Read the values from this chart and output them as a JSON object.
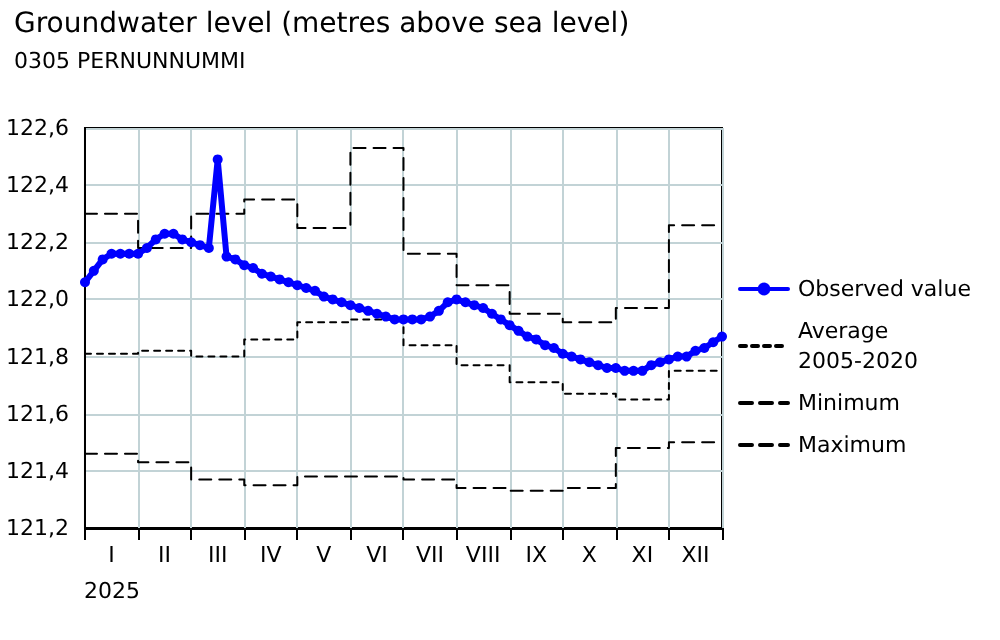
{
  "chart_data": {
    "type": "line",
    "title": "Groundwater level (metres above sea level)",
    "subtitle": "0305 PERNUNNUMMI",
    "xlabel": "2025",
    "categories": [
      null,
      null,
      null,
      "I",
      null,
      null,
      null,
      null,
      null,
      "II",
      null,
      null,
      null,
      null,
      null,
      "III",
      null,
      null,
      null,
      null,
      null,
      "IV",
      null,
      null,
      null,
      null,
      null,
      "V",
      null,
      null,
      null,
      null,
      null,
      "VI",
      null,
      null,
      null,
      null,
      null,
      "VII",
      null,
      null,
      null,
      null,
      null,
      "VIII",
      null,
      null,
      null,
      null,
      null,
      "IX",
      null,
      null,
      null,
      null,
      null,
      "X",
      null,
      null,
      null,
      null,
      null,
      "XI",
      null,
      null,
      null,
      null,
      null,
      "XII",
      null,
      null,
      null
    ],
    "ylim": [
      121.2,
      122.6
    ],
    "yticks": [
      {
        "value": 121.2,
        "label": "121,2"
      },
      {
        "value": 121.4,
        "label": "121,4"
      },
      {
        "value": 121.6,
        "label": "121,6"
      },
      {
        "value": 121.8,
        "label": "121,8"
      },
      {
        "value": 122.0,
        "label": "122,0"
      },
      {
        "value": 122.2,
        "label": "122,2"
      },
      {
        "value": 122.4,
        "label": "122,4"
      },
      {
        "value": 122.6,
        "label": "122,6"
      }
    ],
    "grid": true,
    "legend": "right",
    "series": [
      {
        "name": "Observed value",
        "color": "#0000ff",
        "marker": "circle",
        "line_style": "solid",
        "values": [
          122.06,
          122.1,
          122.14,
          122.16,
          122.16,
          122.16,
          122.16,
          122.18,
          122.21,
          122.23,
          122.23,
          122.21,
          122.2,
          122.19,
          122.18,
          122.49,
          122.15,
          122.14,
          122.12,
          122.11,
          122.09,
          122.08,
          122.07,
          122.06,
          122.05,
          122.04,
          122.03,
          122.01,
          122.0,
          121.99,
          121.98,
          121.97,
          121.96,
          121.95,
          121.94,
          121.93,
          121.93,
          121.93,
          121.93,
          121.94,
          121.96,
          121.99,
          122.0,
          121.99,
          121.98,
          121.97,
          121.95,
          121.93,
          121.91,
          121.89,
          121.87,
          121.86,
          121.84,
          121.83,
          121.81,
          121.8,
          121.79,
          121.78,
          121.77,
          121.76,
          121.76,
          121.75,
          121.75,
          121.75,
          121.77,
          121.78,
          121.79,
          121.8,
          121.8,
          121.82,
          121.83,
          121.85,
          121.87
        ]
      },
      {
        "name": "Average 2005-2020",
        "type": "step",
        "color": "#000000",
        "marker": "none",
        "line_style": "dotted",
        "values": [
          121.81,
          121.81,
          121.81,
          121.81,
          121.81,
          121.81,
          121.82,
          121.82,
          121.82,
          121.82,
          121.82,
          121.82,
          121.8,
          121.8,
          121.8,
          121.8,
          121.8,
          121.8,
          121.86,
          121.86,
          121.86,
          121.86,
          121.86,
          121.86,
          121.92,
          121.92,
          121.92,
          121.92,
          121.92,
          121.92,
          121.93,
          121.93,
          121.93,
          121.93,
          121.93,
          121.93,
          121.84,
          121.84,
          121.84,
          121.84,
          121.84,
          121.84,
          121.77,
          121.77,
          121.77,
          121.77,
          121.77,
          121.77,
          121.71,
          121.71,
          121.71,
          121.71,
          121.71,
          121.71,
          121.67,
          121.67,
          121.67,
          121.67,
          121.67,
          121.67,
          121.65,
          121.65,
          121.65,
          121.65,
          121.65,
          121.65,
          121.75,
          121.75,
          121.75,
          121.75,
          121.75,
          121.75,
          121.75
        ]
      },
      {
        "name": "Minimum",
        "type": "step",
        "color": "#000000",
        "marker": "none",
        "line_style": "dashed",
        "values": [
          121.46,
          121.46,
          121.46,
          121.46,
          121.46,
          121.46,
          121.43,
          121.43,
          121.43,
          121.43,
          121.43,
          121.43,
          121.37,
          121.37,
          121.37,
          121.37,
          121.37,
          121.37,
          121.35,
          121.35,
          121.35,
          121.35,
          121.35,
          121.35,
          121.38,
          121.38,
          121.38,
          121.38,
          121.38,
          121.38,
          121.38,
          121.38,
          121.38,
          121.38,
          121.38,
          121.38,
          121.37,
          121.37,
          121.37,
          121.37,
          121.37,
          121.37,
          121.34,
          121.34,
          121.34,
          121.34,
          121.34,
          121.34,
          121.33,
          121.33,
          121.33,
          121.33,
          121.33,
          121.33,
          121.34,
          121.34,
          121.34,
          121.34,
          121.34,
          121.34,
          121.48,
          121.48,
          121.48,
          121.48,
          121.48,
          121.48,
          121.5,
          121.5,
          121.5,
          121.5,
          121.5,
          121.5,
          121.5
        ]
      },
      {
        "name": "Maximum",
        "type": "step",
        "color": "#000000",
        "marker": "none",
        "line_style": "dashed",
        "values": [
          122.3,
          122.3,
          122.3,
          122.3,
          122.3,
          122.3,
          122.18,
          122.18,
          122.18,
          122.18,
          122.18,
          122.18,
          122.3,
          122.3,
          122.3,
          122.3,
          122.3,
          122.3,
          122.35,
          122.35,
          122.35,
          122.35,
          122.35,
          122.35,
          122.25,
          122.25,
          122.25,
          122.25,
          122.25,
          122.25,
          122.53,
          122.53,
          122.53,
          122.53,
          122.53,
          122.53,
          122.16,
          122.16,
          122.16,
          122.16,
          122.16,
          122.16,
          122.05,
          122.05,
          122.05,
          122.05,
          122.05,
          122.05,
          121.95,
          121.95,
          121.95,
          121.95,
          121.95,
          121.95,
          121.92,
          121.92,
          121.92,
          121.92,
          121.92,
          121.92,
          121.97,
          121.97,
          121.97,
          121.97,
          121.97,
          121.97,
          122.26,
          122.26,
          122.26,
          122.26,
          122.26,
          122.26,
          122.26
        ]
      }
    ]
  }
}
